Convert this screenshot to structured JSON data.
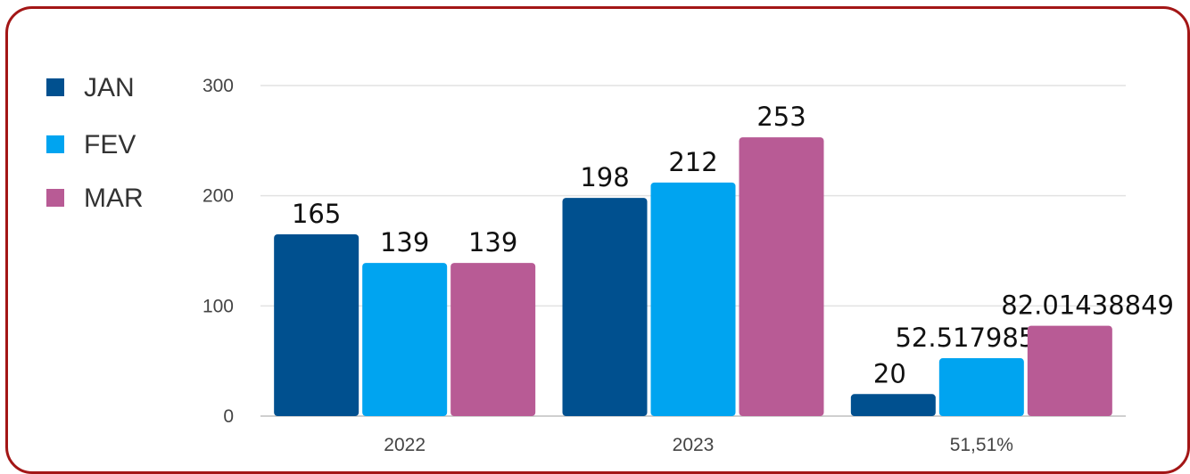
{
  "chart_data": {
    "type": "bar",
    "categories": [
      "2022",
      "2023",
      "51,51%"
    ],
    "series": [
      {
        "name": "JAN",
        "color": "#00508f",
        "values": [
          165,
          198,
          20
        ],
        "labels": [
          "165",
          "198",
          "20"
        ]
      },
      {
        "name": "FEV",
        "color": "#00a4f0",
        "values": [
          139,
          212,
          52.51798561
        ],
        "labels": [
          "139",
          "212",
          "52.51798561"
        ]
      },
      {
        "name": "MAR",
        "color": "#b85b95",
        "values": [
          139,
          253,
          82.01438849
        ],
        "labels": [
          "139",
          "253",
          "82.01438849"
        ]
      }
    ],
    "yticks": [
      "0",
      "100",
      "200",
      "300"
    ],
    "ylim": [
      0,
      300
    ],
    "grid": true,
    "legend_position": "left"
  }
}
